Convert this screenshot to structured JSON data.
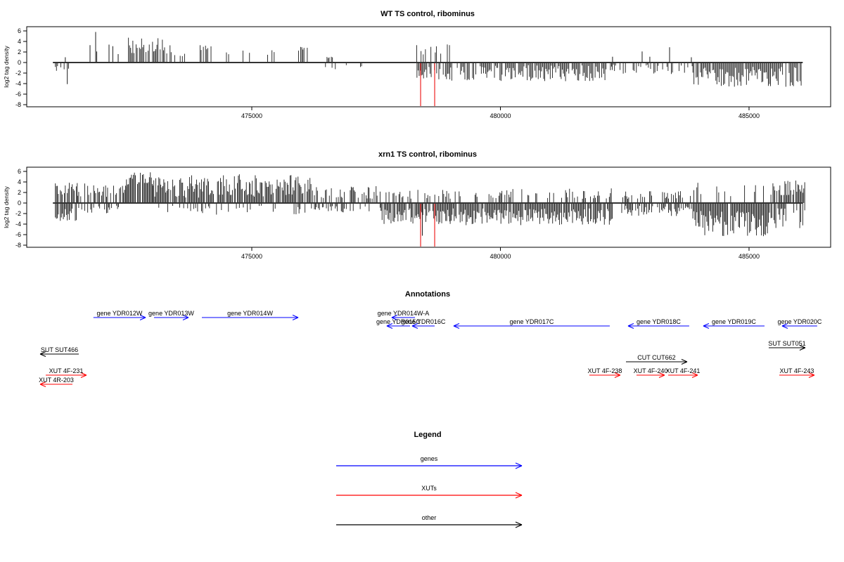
{
  "palette": {
    "gene_color": "#0000ff",
    "xut_color": "#ff0000",
    "other_color": "#000000",
    "bar_color": "#1a1a1a",
    "marker_color": "#ee2222",
    "axis_color": "#000000",
    "zero_line_color": "#333333"
  },
  "chart_data": {
    "type": "bar",
    "description_note": "log2 tag density tracks along chromosome coordinates, bars up=forward strand, down=reverse strand",
    "xlim": [
      470474,
      486641
    ],
    "ylim": [
      -8.4,
      6.8
    ],
    "xticks": [
      475000,
      480000,
      485000
    ],
    "xtick_labels": [
      "475000",
      "480000",
      "485000"
    ],
    "yticks": [
      6,
      4,
      2,
      0,
      -2,
      -4,
      -6,
      -8
    ],
    "marker_lines_bp": [
      478395,
      478678
    ],
    "zero_line_span": [
      471000,
      486080
    ],
    "panels": [
      {
        "title": "WT TS control, ribominus",
        "ylabel": "log2 tag density",
        "step_bp": 22,
        "spikes": [
          [
            471250,
            1.0
          ],
          [
            471290,
            -4.1
          ],
          [
            471747,
            3.3
          ],
          [
            471860,
            5.8
          ],
          [
            471882,
            2.1
          ],
          [
            472129,
            3.4
          ],
          [
            472205,
            3.1
          ],
          [
            472313,
            1.6
          ],
          [
            482255,
            1.1
          ],
          [
            482850,
            2.1
          ],
          [
            483005,
            1.1
          ],
          [
            483402,
            2.9
          ],
          [
            483840,
            1.0
          ]
        ],
        "regions": [
          {
            "start": 471050,
            "end": 471360,
            "dir": "down",
            "vmin": 0.5,
            "vmax": 2.2,
            "density": 0.5,
            "seed": 11
          },
          {
            "start": 472520,
            "end": 473380,
            "dir": "up",
            "vmin": 1.5,
            "vmax": 5.0,
            "density": 0.85,
            "seed": 12
          },
          {
            "start": 473450,
            "end": 473650,
            "dir": "up",
            "vmin": 1.2,
            "vmax": 2.0,
            "density": 0.4,
            "seed": 13
          },
          {
            "start": 473960,
            "end": 474190,
            "dir": "up",
            "vmin": 2.2,
            "vmax": 3.3,
            "density": 0.5,
            "seed": 14
          },
          {
            "start": 474380,
            "end": 474550,
            "dir": "up",
            "vmin": 1.5,
            "vmax": 2.2,
            "density": 0.35,
            "seed": 15
          },
          {
            "start": 474800,
            "end": 474970,
            "dir": "up",
            "vmin": 1.8,
            "vmax": 2.8,
            "density": 0.4,
            "seed": 16
          },
          {
            "start": 475230,
            "end": 475530,
            "dir": "up",
            "vmin": 1.2,
            "vmax": 3.0,
            "density": 0.3,
            "seed": 17
          },
          {
            "start": 475940,
            "end": 476130,
            "dir": "up",
            "vmin": 2.2,
            "vmax": 3.6,
            "density": 0.5,
            "seed": 18
          },
          {
            "start": 476490,
            "end": 476630,
            "dir": "up",
            "vmin": 0.8,
            "vmax": 1.2,
            "density": 0.4,
            "seed": 19
          },
          {
            "start": 476350,
            "end": 477550,
            "dir": "down",
            "vmin": 0.4,
            "vmax": 1.6,
            "density": 0.15,
            "seed": 20
          },
          {
            "start": 478300,
            "end": 479000,
            "dir": "down",
            "vmin": 0.8,
            "vmax": 3.2,
            "density": 0.8,
            "seed": 21
          },
          {
            "start": 478250,
            "end": 478990,
            "dir": "up",
            "vmin": 1.4,
            "vmax": 3.5,
            "density": 0.25,
            "seed": 22
          },
          {
            "start": 479000,
            "end": 482250,
            "dir": "down",
            "vmin": 0.5,
            "vmax": 3.6,
            "density": 0.85,
            "seed": 23
          },
          {
            "start": 482250,
            "end": 483860,
            "dir": "down",
            "vmin": 0.4,
            "vmax": 2.2,
            "density": 0.45,
            "seed": 24
          },
          {
            "start": 483870,
            "end": 486060,
            "dir": "down",
            "vmin": 0.8,
            "vmax": 4.6,
            "density": 0.9,
            "seed": 25
          }
        ]
      },
      {
        "title": "xrn1 TS control, ribominus",
        "ylabel": "log2 tag density",
        "step_bp": 20,
        "spikes": [
          [
            478430,
            -6.2
          ]
        ],
        "regions": [
          {
            "start": 471050,
            "end": 471500,
            "dir": "up",
            "vmin": 1.5,
            "vmax": 4.0,
            "density": 0.8,
            "seed": 31
          },
          {
            "start": 471050,
            "end": 471500,
            "dir": "down",
            "vmin": 1.0,
            "vmax": 3.5,
            "density": 0.8,
            "seed": 32
          },
          {
            "start": 471500,
            "end": 472100,
            "dir": "up",
            "vmin": 1.0,
            "vmax": 3.8,
            "density": 0.6,
            "seed": 33
          },
          {
            "start": 471500,
            "end": 472100,
            "dir": "down",
            "vmin": 0.5,
            "vmax": 2.0,
            "density": 0.3,
            "seed": 34
          },
          {
            "start": 472100,
            "end": 472480,
            "dir": "up",
            "vmin": 1.5,
            "vmax": 3.5,
            "density": 0.7,
            "seed": 35
          },
          {
            "start": 472100,
            "end": 472480,
            "dir": "down",
            "vmin": 0.5,
            "vmax": 1.5,
            "density": 0.2,
            "seed": 36
          },
          {
            "start": 472480,
            "end": 473010,
            "dir": "up",
            "vmin": 3.5,
            "vmax": 6.1,
            "density": 0.95,
            "seed": 37
          },
          {
            "start": 473010,
            "end": 476200,
            "dir": "up",
            "vmin": 1.0,
            "vmax": 5.5,
            "density": 0.85,
            "seed": 38
          },
          {
            "start": 473010,
            "end": 476200,
            "dir": "down",
            "vmin": 0.5,
            "vmax": 2.2,
            "density": 0.25,
            "seed": 39
          },
          {
            "start": 476200,
            "end": 477600,
            "dir": "up",
            "vmin": 0.8,
            "vmax": 3.2,
            "density": 0.5,
            "seed": 40
          },
          {
            "start": 476200,
            "end": 477600,
            "dir": "down",
            "vmin": 0.5,
            "vmax": 1.8,
            "density": 0.35,
            "seed": 41
          },
          {
            "start": 477600,
            "end": 478990,
            "dir": "down",
            "vmin": 1.0,
            "vmax": 4.0,
            "density": 0.9,
            "seed": 42
          },
          {
            "start": 477600,
            "end": 478990,
            "dir": "up",
            "vmin": 0.8,
            "vmax": 2.5,
            "density": 0.35,
            "seed": 43
          },
          {
            "start": 478990,
            "end": 482260,
            "dir": "down",
            "vmin": 1.0,
            "vmax": 4.2,
            "density": 0.9,
            "seed": 44
          },
          {
            "start": 478990,
            "end": 482260,
            "dir": "up",
            "vmin": 0.8,
            "vmax": 2.8,
            "density": 0.3,
            "seed": 45
          },
          {
            "start": 482440,
            "end": 483870,
            "dir": "down",
            "vmin": 0.5,
            "vmax": 2.5,
            "density": 0.7,
            "seed": 46
          },
          {
            "start": 482440,
            "end": 483870,
            "dir": "up",
            "vmin": 0.8,
            "vmax": 2.3,
            "density": 0.3,
            "seed": 47
          },
          {
            "start": 483870,
            "end": 485420,
            "dir": "down",
            "vmin": 1.5,
            "vmax": 6.3,
            "density": 0.95,
            "seed": 48
          },
          {
            "start": 483870,
            "end": 485420,
            "dir": "up",
            "vmin": 0.8,
            "vmax": 4.2,
            "density": 0.25,
            "seed": 49
          },
          {
            "start": 485420,
            "end": 486120,
            "dir": "up",
            "vmin": 1.5,
            "vmax": 4.6,
            "density": 0.8,
            "seed": 50
          },
          {
            "start": 485420,
            "end": 486120,
            "dir": "down",
            "vmin": 1.0,
            "vmax": 5.0,
            "density": 0.7,
            "seed": 51
          }
        ]
      }
    ]
  },
  "annotations": {
    "title": "Annotations",
    "features": [
      {
        "label": "gene YDR012W",
        "type": "gene",
        "start": 471815,
        "end": 472865,
        "strand": "+",
        "row": "geneA"
      },
      {
        "label": "gene YDR013W",
        "type": "gene",
        "start": 473034,
        "end": 473727,
        "strand": "+",
        "row": "geneA"
      },
      {
        "label": "gene YDR014W",
        "type": "gene",
        "start": 473996,
        "end": 475934,
        "strand": "+",
        "row": "geneA"
      },
      {
        "label": "gene YDR014W-A",
        "type": "gene",
        "start": 477814,
        "end": 478281,
        "strand": "-",
        "row": "geneA"
      },
      {
        "label": "gene YDR015C",
        "type": "gene",
        "start": 477715,
        "end": 478182,
        "strand": "-",
        "row": "geneB"
      },
      {
        "label": "gene YDR016C",
        "type": "gene",
        "start": 478224,
        "end": 478677,
        "strand": "-",
        "row": "geneB"
      },
      {
        "label": "gene YDR017C",
        "type": "gene",
        "start": 479059,
        "end": 482199,
        "strand": "-",
        "row": "geneB"
      },
      {
        "label": "gene YDR018C",
        "type": "gene",
        "start": 482567,
        "end": 483797,
        "strand": "-",
        "row": "geneB"
      },
      {
        "label": "gene YDR019C",
        "type": "gene",
        "start": 484080,
        "end": 485311,
        "strand": "-",
        "row": "geneB"
      },
      {
        "label": "gene YDR020C",
        "type": "gene",
        "start": 485664,
        "end": 486371,
        "strand": "-",
        "row": "geneB"
      },
      {
        "label": "SUT SUT466",
        "type": "sut",
        "start": 470743,
        "end": 471521,
        "strand": "-",
        "row": "sutL"
      },
      {
        "label": "SUT SUT051",
        "type": "sut",
        "start": 485396,
        "end": 486131,
        "strand": "+",
        "row": "sutR"
      },
      {
        "label": "CUT CUT662",
        "type": "cut",
        "start": 482525,
        "end": 483755,
        "strand": "+",
        "row": "cut"
      },
      {
        "label": "XUT 4F-231",
        "type": "xut",
        "start": 470856,
        "end": 471676,
        "strand": "+",
        "row": "xutA"
      },
      {
        "label": "XUT 4R-203",
        "type": "xut",
        "start": 470743,
        "end": 471393,
        "strand": "-",
        "row": "xutB"
      },
      {
        "label": "XUT 4F-238",
        "type": "xut",
        "start": 481789,
        "end": 482411,
        "strand": "+",
        "row": "xutA"
      },
      {
        "label": "XUT 4F-240",
        "type": "xut",
        "start": 482737,
        "end": 483303,
        "strand": "+",
        "row": "xutA"
      },
      {
        "label": "XUT 4F-241",
        "type": "xut",
        "start": 483374,
        "end": 483968,
        "strand": "+",
        "row": "xutA"
      },
      {
        "label": "XUT 4F-243",
        "type": "xut",
        "start": 485608,
        "end": 486315,
        "strand": "+",
        "row": "xutA"
      }
    ]
  },
  "legend": {
    "title": "Legend",
    "items": [
      {
        "label": "genes",
        "color_key": "gene_color"
      },
      {
        "label": "XUTs",
        "color_key": "xut_color"
      },
      {
        "label": "other",
        "color_key": "other_color"
      }
    ]
  }
}
